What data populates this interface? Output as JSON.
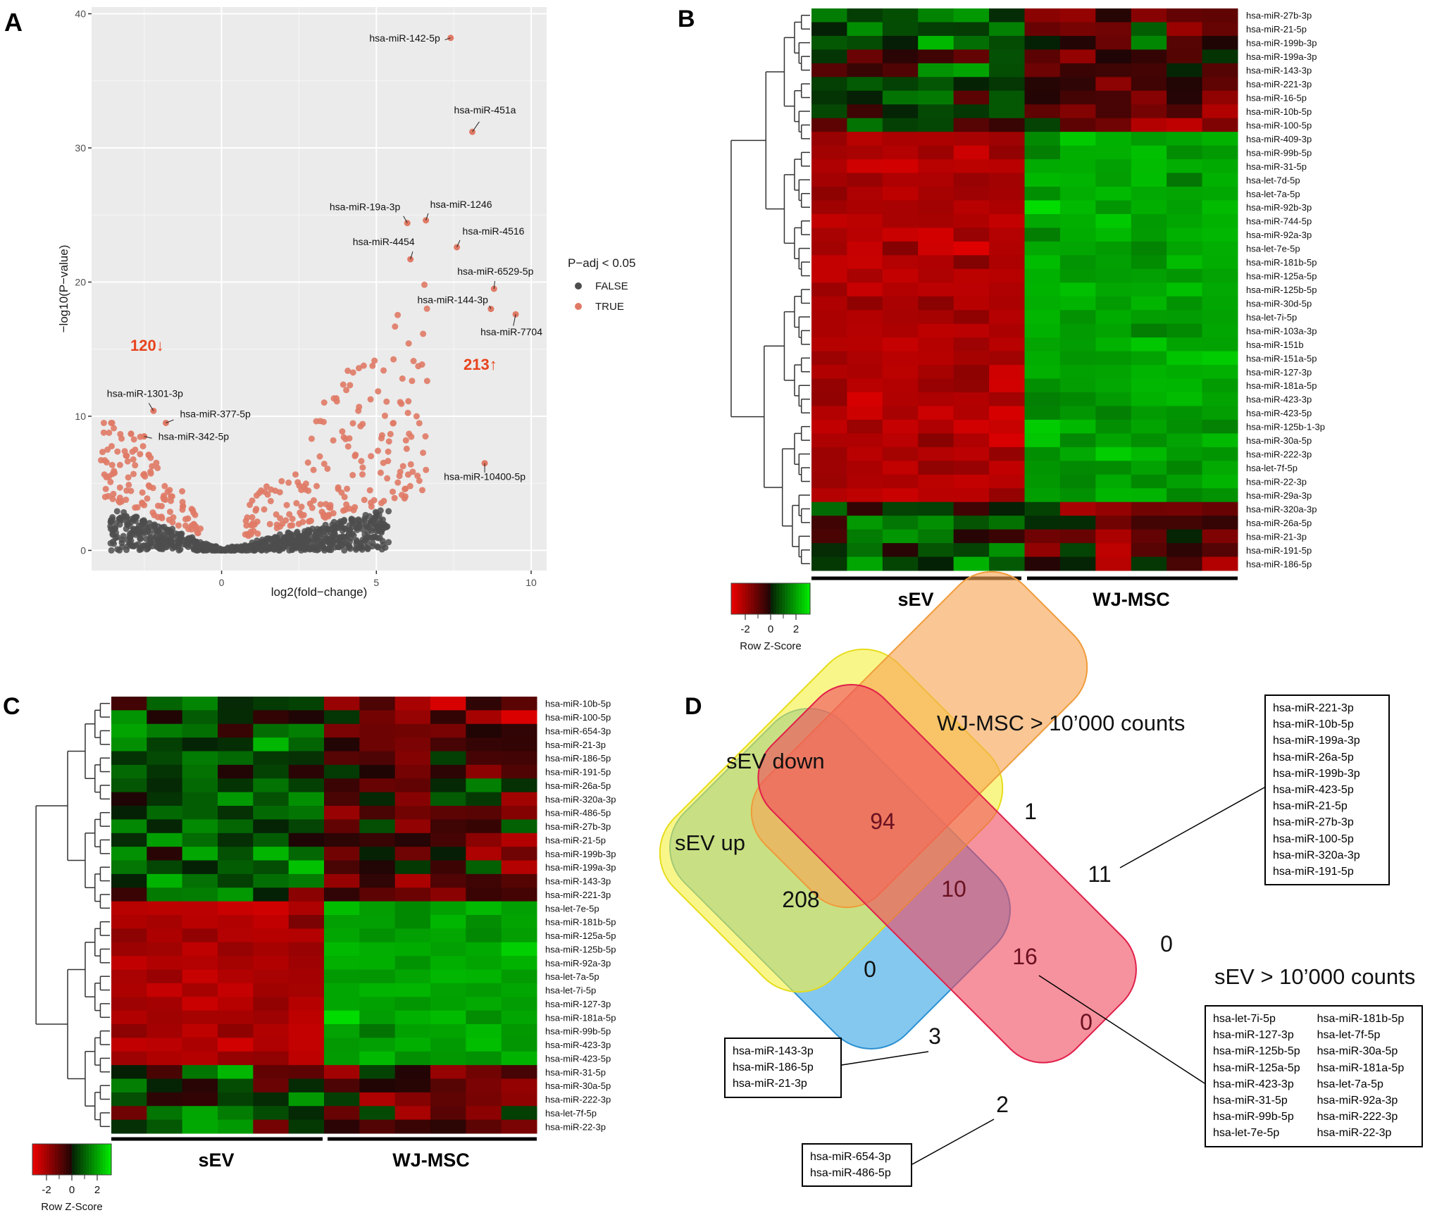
{
  "panels": {
    "A": "A",
    "B": "B",
    "C": "C",
    "D": "D"
  },
  "chart_data": [
    {
      "type": "scatter",
      "title": "",
      "xlabel": "log2(fold−change)",
      "ylabel": "−log10(P−value)",
      "xlim": [
        -4.2,
        10.5
      ],
      "ylim": [
        -1.5,
        40.5
      ],
      "xticks": [
        0,
        5,
        10
      ],
      "yticks": [
        0,
        10,
        20,
        30,
        40
      ],
      "legend_title": "P−adj < 0.05",
      "legend_entries": [
        "FALSE",
        "TRUE"
      ],
      "legend_colors": {
        "FALSE": "#4d4d4d",
        "TRUE": "#e07a66"
      },
      "down_count_label": "120↓",
      "up_count_label": "213↑",
      "labeled_points": [
        {
          "label": "hsa-miR-142-5p",
          "x": 7.4,
          "y": 38.2
        },
        {
          "label": "hsa-miR-451a",
          "x": 8.1,
          "y": 31.2
        },
        {
          "label": "hsa-miR-19a-3p",
          "x": 6.0,
          "y": 24.4
        },
        {
          "label": "hsa-miR-1246",
          "x": 6.6,
          "y": 24.6
        },
        {
          "label": "hsa-miR-4516",
          "x": 7.6,
          "y": 22.6
        },
        {
          "label": "hsa-miR-4454",
          "x": 6.1,
          "y": 21.7
        },
        {
          "label": "hsa-miR-6529-5p",
          "x": 8.8,
          "y": 19.5
        },
        {
          "label": "hsa-miR-144-3p",
          "x": 8.7,
          "y": 18.0
        },
        {
          "label": "hsa-miR-7704",
          "x": 9.5,
          "y": 17.6
        },
        {
          "label": "hsa-miR-1301-3p",
          "x": -2.2,
          "y": 10.4
        },
        {
          "label": "hsa-miR-377-5p",
          "x": -1.8,
          "y": 9.5
        },
        {
          "label": "hsa-miR-342-5p",
          "x": -2.5,
          "y": 8.5
        },
        {
          "label": "hsa-miR-10400-5p",
          "x": 8.5,
          "y": 6.5
        }
      ]
    },
    {
      "type": "heatmap",
      "panel": "B",
      "rows": [
        "hsa-miR-27b-3p",
        "hsa-miR-21-5p",
        "hsa-miR-199b-3p",
        "hsa-miR-199a-3p",
        "hsa-miR-143-3p",
        "hsa-miR-221-3p",
        "hsa-miR-16-5p",
        "hsa-miR-10b-5p",
        "hsa-miR-100-5p",
        "hsa-miR-409-3p",
        "hsa-miR-99b-5p",
        "hsa-miR-31-5p",
        "hsa-let-7d-5p",
        "hsa-let-7a-5p",
        "hsa-miR-92b-3p",
        "hsa-miR-744-5p",
        "hsa-miR-92a-3p",
        "hsa-let-7e-5p",
        "hsa-miR-181b-5p",
        "hsa-miR-125a-5p",
        "hsa-miR-125b-5p",
        "hsa-miR-30d-5p",
        "hsa-let-7i-5p",
        "hsa-miR-103a-3p",
        "hsa-miR-151b",
        "hsa-miR-151a-5p",
        "hsa-miR-127-3p",
        "hsa-miR-181a-5p",
        "hsa-miR-423-3p",
        "hsa-miR-423-5p",
        "hsa-miR-125b-1-3p",
        "hsa-miR-30a-5p",
        "hsa-miR-222-3p",
        "hsa-let-7f-5p",
        "hsa-miR-22-3p",
        "hsa-miR-29a-3p",
        "hsa-miR-320a-3p",
        "hsa-miR-26a-5p",
        "hsa-miR-21-3p",
        "hsa-miR-191-5p",
        "hsa-miR-186-5p"
      ],
      "groups": [
        "sEV",
        "WJ-MSC"
      ],
      "columns_per_group": 6,
      "scale_label": "Row Z-Score",
      "scale_ticks": [
        "-2",
        "0",
        "2"
      ]
    },
    {
      "type": "heatmap",
      "panel": "C",
      "rows": [
        "hsa-miR-10b-5p",
        "hsa-miR-100-5p",
        "hsa-miR-654-3p",
        "hsa-miR-21-3p",
        "hsa-miR-186-5p",
        "hsa-miR-191-5p",
        "hsa-miR-26a-5p",
        "hsa-miR-320a-3p",
        "hsa-miR-486-5p",
        "hsa-miR-27b-3p",
        "hsa-miR-21-5p",
        "hsa-miR-199b-3p",
        "hsa-miR-199a-3p",
        "hsa-miR-143-3p",
        "hsa-miR-221-3p",
        "hsa-let-7e-5p",
        "hsa-miR-181b-5p",
        "hsa-miR-125a-5p",
        "hsa-miR-125b-5p",
        "hsa-miR-92a-3p",
        "hsa-let-7a-5p",
        "hsa-let-7i-5p",
        "hsa-miR-127-3p",
        "hsa-miR-181a-5p",
        "hsa-miR-99b-5p",
        "hsa-miR-423-3p",
        "hsa-miR-423-5p",
        "hsa-miR-31-5p",
        "hsa-miR-30a-5p",
        "hsa-miR-222-3p",
        "hsa-let-7f-5p",
        "hsa-miR-22-3p"
      ],
      "groups": [
        "sEV",
        "WJ-MSC"
      ],
      "columns_per_group": 6,
      "scale_label": "Row Z-Score",
      "scale_ticks": [
        "-2",
        "0",
        "2"
      ]
    },
    {
      "type": "venn",
      "panel": "D",
      "sets": [
        "sEV up",
        "sEV down",
        "WJ-MSC > 10’000 counts",
        "sEV > 10’000 counts"
      ],
      "region_counts": {
        "sEV_up_only": "208",
        "sEV_down_only": "94",
        "WJ_MSC_only": "1",
        "sEV_10000_only": "0",
        "sEV_down_and_WJ_MSC": "10",
        "WJ_MSC_and_sEV_10000": "11",
        "sEV_up_and_WJ_MSC": "0",
        "all_down_WJ_sEV10000": "16",
        "sEV_down_and_sEV_10000": "0",
        "sEV_up_WJ_sEV10000": "3",
        "sEV_up_and_sEV_10000": "2"
      },
      "callouts": {
        "eleven": [
          "hsa-miR-221-3p",
          "hsa-miR-10b-5p",
          "hsa-miR-199a-3p",
          "hsa-miR-26a-5p",
          "hsa-miR-199b-3p",
          "hsa-miR-423-5p",
          "hsa-miR-21-5p",
          "hsa-miR-27b-3p",
          "hsa-miR-100-5p",
          "hsa-miR-320a-3p",
          "hsa-miR-191-5p"
        ],
        "sixteen_left": [
          "hsa-let-7i-5p",
          "hsa-miR-127-3p",
          "hsa-miR-125b-5p",
          "hsa-miR-125a-5p",
          "hsa-miR-423-3p",
          "hsa-miR-31-5p",
          "hsa-miR-99b-5p",
          "hsa-let-7e-5p"
        ],
        "sixteen_right": [
          "hsa-miR-181b-5p",
          "hsa-let-7f-5p",
          "hsa-miR-30a-5p",
          "hsa-miR-181a-5p",
          "hsa-let-7a-5p",
          "hsa-miR-92a-3p",
          "hsa-miR-222-3p",
          "hsa-miR-22-3p"
        ],
        "three": [
          "hsa-miR-143-3p",
          "hsa-miR-186-5p",
          "hsa-miR-21-3p"
        ],
        "two": [
          "hsa-miR-654-3p",
          "hsa-miR-486-5p"
        ]
      }
    }
  ]
}
